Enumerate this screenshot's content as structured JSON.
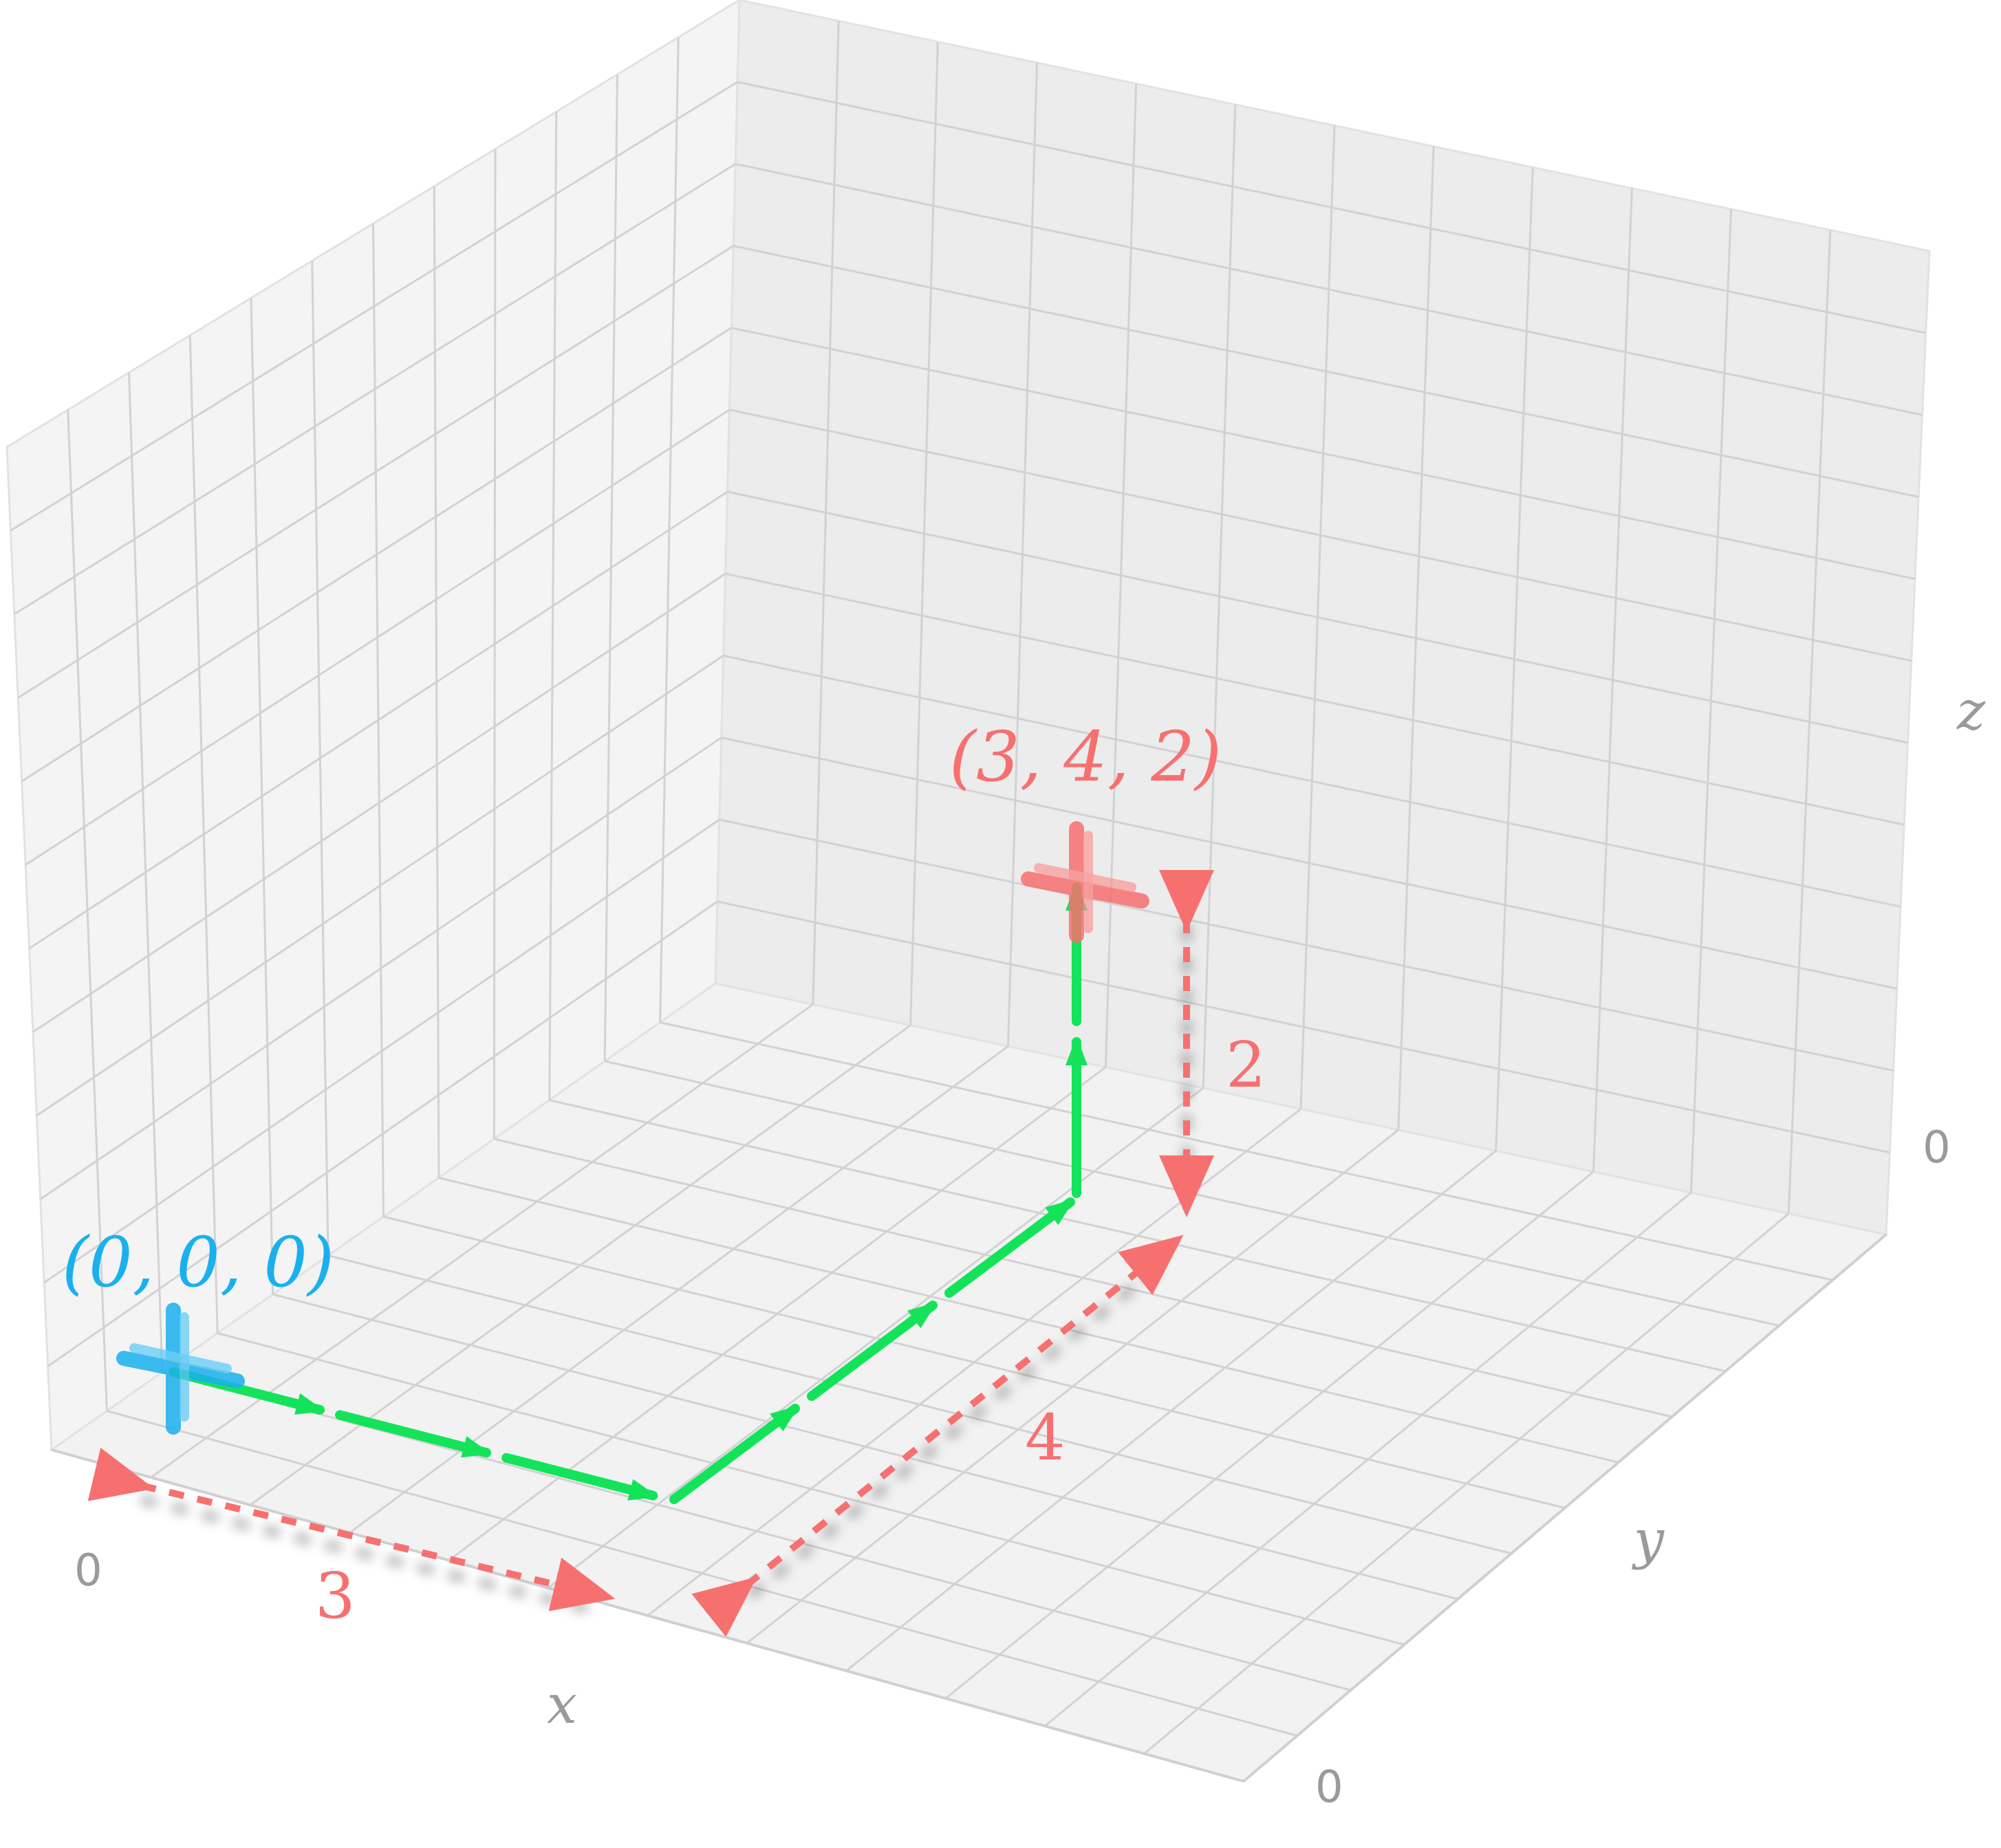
{
  "axes": {
    "x_label": "x",
    "y_label": "y",
    "z_label": "z",
    "x_tick": "0",
    "y_tick": "0",
    "z_tick": "0"
  },
  "points": {
    "origin": {
      "label": "(0, 0, 0)",
      "coords": [
        0,
        0,
        0
      ],
      "color": "#1ab0ee"
    },
    "target": {
      "label": "(3, 4, 2)",
      "coords": [
        3,
        4,
        2
      ],
      "color": "#f77070"
    }
  },
  "distances": {
    "dx": "3",
    "dy": "4",
    "dz": "2"
  },
  "colors": {
    "path": "#14e35a",
    "distance": "#f77070",
    "grid": "#d2d2d2",
    "pane_left": "#f4f4f4",
    "pane_back": "#ececec",
    "pane_floor": "#f2f2f2",
    "axis_text": "#9a9a9a"
  }
}
